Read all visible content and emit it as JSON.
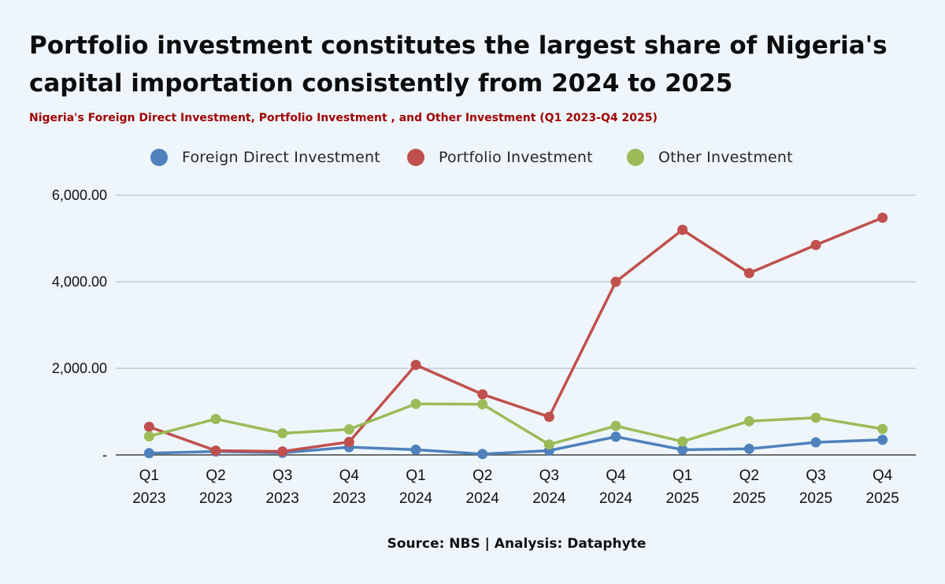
{
  "title": "Portfolio investment constitutes the largest share of Nigeria's capital importation consistently from 2024 to 2025",
  "subtitle": "Nigeria's Foreign Direct Investment, Portfolio Investment , and Other Investment (Q1 2023-Q4 2025)",
  "source": "Source: NBS | Analysis: Dataphyte",
  "colors": {
    "fdi": "#4f81bd",
    "portfolio": "#c0504d",
    "other": "#9bbb59",
    "grid": "#b9c3cc",
    "axis": "#404040",
    "background": "#eef6fc"
  },
  "chart_data": {
    "type": "line",
    "title": "Portfolio investment constitutes the largest share of Nigeria's capital importation consistently from 2024 to 2025",
    "subtitle": "Nigeria's Foreign Direct Investment, Portfolio Investment , and Other Investment (Q1 2023-Q4 2025)",
    "categories": [
      [
        "Q1",
        "2023"
      ],
      [
        "Q2",
        "2023"
      ],
      [
        "Q3",
        "2023"
      ],
      [
        "Q4",
        "2023"
      ],
      [
        "Q1",
        "2024"
      ],
      [
        "Q2",
        "2024"
      ],
      [
        "Q3",
        "2024"
      ],
      [
        "Q4",
        "2024"
      ],
      [
        "Q1",
        "2025"
      ],
      [
        "Q2",
        "2025"
      ],
      [
        "Q3",
        "2025"
      ],
      [
        "Q4",
        "2025"
      ]
    ],
    "y_ticks": [
      {
        "value": 0,
        "label": "-"
      },
      {
        "value": 2000,
        "label": "2,000.00"
      },
      {
        "value": 4000,
        "label": "4,000.00"
      },
      {
        "value": 6000,
        "label": "6,000.00"
      }
    ],
    "ylim": [
      0,
      6000
    ],
    "grid": true,
    "legend_position": "top",
    "series": [
      {
        "name": "Foreign Direct Investment",
        "key": "fdi",
        "values": [
          40,
          80,
          50,
          180,
          120,
          20,
          100,
          420,
          120,
          140,
          290,
          350
        ]
      },
      {
        "name": "Portfolio Investment",
        "key": "portfolio",
        "values": [
          650,
          100,
          80,
          300,
          2080,
          1400,
          880,
          4000,
          5200,
          4200,
          4850,
          5480
        ]
      },
      {
        "name": "Other Investment",
        "key": "other",
        "values": [
          430,
          830,
          500,
          590,
          1180,
          1170,
          240,
          670,
          310,
          780,
          860,
          600
        ]
      }
    ]
  }
}
